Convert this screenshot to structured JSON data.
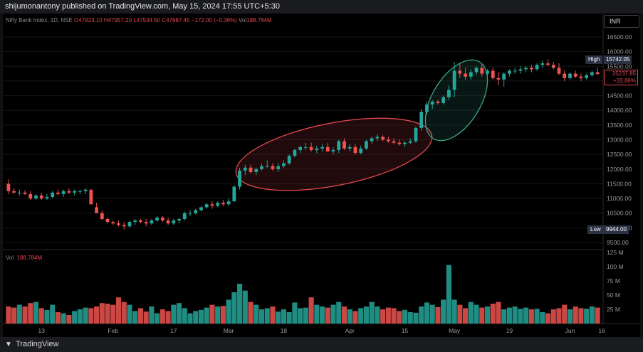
{
  "header": {
    "publisher_line": "shijumonantony published on TradingView.com, May 15, 2024 17:55 UTC+5:30"
  },
  "legend": {
    "symbol": "Nifty Bank Index, 1D, NSE",
    "open": "O47923.10",
    "high": "H47957.20",
    "low": "L47534.50",
    "close": "C47687.45",
    "change": "−172.00 (−0.36%)",
    "vol_label": "Vol",
    "vol_value": "188.784M"
  },
  "currency": "INR",
  "price_axis": {
    "ticks": [
      "16500.00",
      "16000.00",
      "15500.00",
      "15000.00",
      "14500.00",
      "14000.00",
      "13500.00",
      "13000.00",
      "12500.00",
      "12000.00",
      "11500.00",
      "11000.00",
      "10500.00",
      "10000.00",
      "9500.00"
    ],
    "high_label": "High",
    "high_value": "15742.05",
    "low_label": "Low",
    "low_value": "9944.00",
    "last_value": "15237.85",
    "last_change": "+33.86%"
  },
  "volume_axis": {
    "ticks": [
      "125 M",
      "100 M",
      "75 M",
      "50 M",
      "25 M"
    ]
  },
  "time_axis": {
    "ticks": [
      "13",
      "Feb",
      "17",
      "Mar",
      "18",
      "Apr",
      "15",
      "May",
      "19",
      "Jun",
      "16"
    ]
  },
  "footer": {
    "brand": "TradingView",
    "logo_icon": "tradingview-logo-icon"
  },
  "colors": {
    "up": "#26a69a",
    "down": "#ef5350",
    "ellipse_red": "#e0474e",
    "ellipse_green": "#3ba58a"
  },
  "chart_data": {
    "type": "candlestick",
    "price_range": [
      9500,
      16500
    ],
    "volume_range": [
      0,
      125
    ],
    "candles": [
      [
        11500,
        11650,
        11150,
        11250,
        30
      ],
      [
        11250,
        11350,
        11150,
        11200,
        28
      ],
      [
        11200,
        11300,
        11100,
        11200,
        33
      ],
      [
        11200,
        11280,
        11120,
        11150,
        30
      ],
      [
        11150,
        11250,
        10950,
        11000,
        36
      ],
      [
        11000,
        11150,
        10950,
        11100,
        38
      ],
      [
        11100,
        11200,
        10950,
        11000,
        27
      ],
      [
        11000,
        11150,
        10950,
        11050,
        24
      ],
      [
        11050,
        11250,
        11000,
        11200,
        33
      ],
      [
        11200,
        11300,
        11100,
        11150,
        20
      ],
      [
        11150,
        11300,
        11050,
        11250,
        18
      ],
      [
        11250,
        11350,
        11150,
        11200,
        15
      ],
      [
        11200,
        11300,
        11100,
        11250,
        22
      ],
      [
        11250,
        11300,
        11150,
        11250,
        25
      ],
      [
        11250,
        11350,
        11150,
        11300,
        28
      ],
      [
        11300,
        11300,
        10800,
        10800,
        27
      ],
      [
        10700,
        10850,
        10500,
        10500,
        30
      ],
      [
        10500,
        10600,
        10250,
        10300,
        36
      ],
      [
        10300,
        10350,
        10150,
        10200,
        35
      ],
      [
        10200,
        10250,
        10100,
        10150,
        33
      ],
      [
        10150,
        10250,
        10050,
        10100,
        46
      ],
      [
        10100,
        10200,
        9944,
        10050,
        38
      ],
      [
        10050,
        10250,
        10000,
        10200,
        33
      ],
      [
        10200,
        10300,
        10100,
        10250,
        22
      ],
      [
        10250,
        10300,
        10150,
        10200,
        27
      ],
      [
        10200,
        10300,
        10050,
        10150,
        21
      ],
      [
        10150,
        10300,
        10100,
        10250,
        30
      ],
      [
        10250,
        10400,
        10200,
        10350,
        18
      ],
      [
        10350,
        10400,
        10200,
        10250,
        25
      ],
      [
        10250,
        10350,
        10100,
        10150,
        22
      ],
      [
        10150,
        10300,
        10100,
        10250,
        33
      ],
      [
        10250,
        10350,
        10150,
        10300,
        36
      ],
      [
        10300,
        10550,
        10250,
        10500,
        27
      ],
      [
        10500,
        10600,
        10400,
        10500,
        18
      ],
      [
        10500,
        10650,
        10450,
        10600,
        22
      ],
      [
        10600,
        10750,
        10550,
        10700,
        24
      ],
      [
        10700,
        10850,
        10650,
        10800,
        28
      ],
      [
        10800,
        10900,
        10650,
        10750,
        33
      ],
      [
        10750,
        10900,
        10700,
        10850,
        30
      ],
      [
        10850,
        10950,
        10750,
        10800,
        31
      ],
      [
        10800,
        11000,
        10750,
        10900,
        42
      ],
      [
        10900,
        11450,
        10900,
        11400,
        55
      ],
      [
        11400,
        12050,
        11300,
        11950,
        70
      ],
      [
        11950,
        12150,
        11800,
        12050,
        58
      ],
      [
        12050,
        12150,
        11850,
        11900,
        38
      ],
      [
        11900,
        12050,
        11800,
        12000,
        33
      ],
      [
        12000,
        12200,
        11950,
        12100,
        25
      ],
      [
        12100,
        12300,
        12050,
        12100,
        27
      ],
      [
        12100,
        12200,
        11950,
        12000,
        30
      ],
      [
        12000,
        12200,
        11900,
        12100,
        21
      ],
      [
        12100,
        12300,
        12050,
        12200,
        25
      ],
      [
        12200,
        12500,
        12150,
        12450,
        20
      ],
      [
        12450,
        12700,
        12400,
        12650,
        37
      ],
      [
        12650,
        12800,
        12550,
        12750,
        27
      ],
      [
        12750,
        12900,
        12650,
        12750,
        28
      ],
      [
        12750,
        12900,
        12600,
        12650,
        46
      ],
      [
        12650,
        12800,
        12550,
        12700,
        33
      ],
      [
        12700,
        12850,
        12600,
        12750,
        30
      ],
      [
        12750,
        12900,
        12650,
        12600,
        28
      ],
      [
        12600,
        12750,
        12500,
        12650,
        33
      ],
      [
        12650,
        13000,
        12550,
        12950,
        38
      ],
      [
        12950,
        13050,
        12650,
        12700,
        30
      ],
      [
        12700,
        12850,
        12600,
        12750,
        25
      ],
      [
        12750,
        12850,
        12500,
        12550,
        22
      ],
      [
        12550,
        12800,
        12500,
        12700,
        27
      ],
      [
        12700,
        13000,
        12650,
        12950,
        30
      ],
      [
        12950,
        13100,
        12850,
        13050,
        38
      ],
      [
        13050,
        13200,
        12950,
        13100,
        30
      ],
      [
        13100,
        13150,
        12950,
        13000,
        25
      ],
      [
        13000,
        13100,
        12900,
        12950,
        28
      ],
      [
        12950,
        13050,
        12850,
        12900,
        27
      ],
      [
        12900,
        13000,
        12800,
        12850,
        22
      ],
      [
        12850,
        12950,
        12750,
        12900,
        24
      ],
      [
        12900,
        13050,
        12850,
        12950,
        20
      ],
      [
        12950,
        13450,
        12900,
        13400,
        19
      ],
      [
        13400,
        14050,
        13300,
        13950,
        30
      ],
      [
        13950,
        14300,
        13850,
        14200,
        37
      ],
      [
        14200,
        14350,
        14050,
        14300,
        33
      ],
      [
        14300,
        14350,
        14200,
        14250,
        29
      ],
      [
        14250,
        14500,
        14200,
        14450,
        42
      ],
      [
        14450,
        14850,
        14350,
        14700,
        103
      ],
      [
        14700,
        15650,
        14450,
        15350,
        42
      ],
      [
        15350,
        15600,
        15100,
        15250,
        33
      ],
      [
        15250,
        15450,
        15050,
        15150,
        27
      ],
      [
        15150,
        15400,
        15050,
        15300,
        38
      ],
      [
        15300,
        15500,
        15200,
        15450,
        33
      ],
      [
        15450,
        15600,
        15150,
        15250,
        28
      ],
      [
        15250,
        15400,
        15100,
        15350,
        30
      ],
      [
        15350,
        15450,
        15050,
        15100,
        35
      ],
      [
        15100,
        15300,
        14850,
        15050,
        38
      ],
      [
        15050,
        15300,
        14800,
        15250,
        25
      ],
      [
        15250,
        15400,
        15150,
        15350,
        28
      ],
      [
        15350,
        15450,
        15250,
        15350,
        30
      ],
      [
        15350,
        15500,
        15250,
        15400,
        26
      ],
      [
        15400,
        15500,
        15300,
        15450,
        28
      ],
      [
        15450,
        15550,
        15300,
        15400,
        25
      ],
      [
        15400,
        15600,
        15350,
        15550,
        26
      ],
      [
        15550,
        15700,
        15450,
        15600,
        20
      ],
      [
        15600,
        15742,
        15500,
        15550,
        18
      ],
      [
        15550,
        15650,
        15400,
        15450,
        25
      ],
      [
        15450,
        15600,
        15200,
        15250,
        27
      ],
      [
        15250,
        15350,
        15000,
        15100,
        33
      ],
      [
        15100,
        15300,
        15050,
        15250,
        25
      ],
      [
        15250,
        15350,
        15100,
        15150,
        30
      ],
      [
        15150,
        15250,
        15000,
        15100,
        27
      ],
      [
        15100,
        15250,
        15050,
        15200,
        26
      ],
      [
        15200,
        15350,
        15150,
        15300,
        30
      ],
      [
        15300,
        15450,
        15200,
        15237.85,
        28
      ]
    ]
  }
}
